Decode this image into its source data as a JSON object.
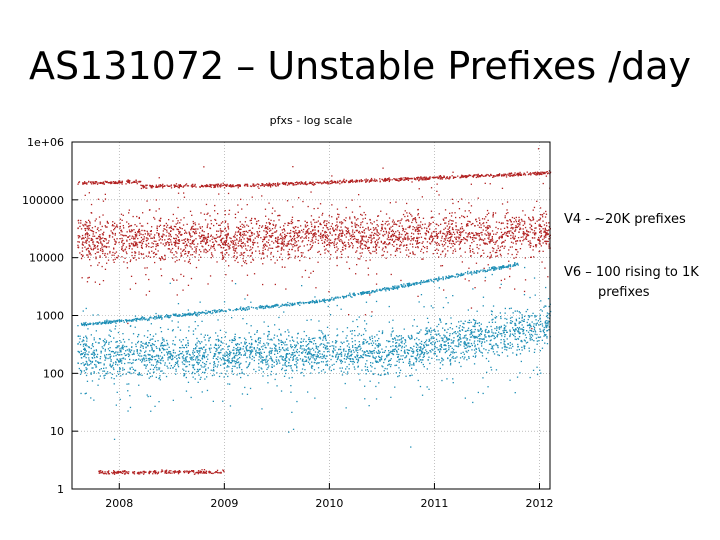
{
  "slide": {
    "title": "AS131072 – Unstable Prefixes /day"
  },
  "annotations": {
    "v4": "V4 - ~20K prefixes",
    "v6_line1": "V6 – 100 rising to 1K",
    "v6_line2": "prefixes"
  },
  "chart_data": {
    "type": "scatter",
    "title": "pfxs - log scale",
    "xlabel": "",
    "ylabel": "",
    "y_scale": "log",
    "ylim": [
      1,
      1000000
    ],
    "xlim": [
      2007.55,
      2012.1
    ],
    "y_ticks": [
      {
        "value": 1,
        "label": "1"
      },
      {
        "value": 10,
        "label": "10"
      },
      {
        "value": 100,
        "label": "100"
      },
      {
        "value": 1000,
        "label": "1000"
      },
      {
        "value": 10000,
        "label": "10000"
      },
      {
        "value": 100000,
        "label": "100000"
      },
      {
        "value": 1000000,
        "label": "1e+06"
      }
    ],
    "x_ticks": [
      {
        "value": 2008,
        "label": "2008"
      },
      {
        "value": 2009,
        "label": "2009"
      },
      {
        "value": 2010,
        "label": "2010"
      },
      {
        "value": 2011,
        "label": "2011"
      },
      {
        "value": 2012,
        "label": "2012"
      }
    ],
    "grid": true,
    "legend": "none",
    "series": [
      {
        "color": "#b22222",
        "bands": [
          {
            "kind": "line",
            "x": [
              2007.6,
              2008.2
            ],
            "y": [
              200000,
              210000
            ]
          },
          {
            "kind": "line",
            "x": [
              2008.2,
              2009.5
            ],
            "y": [
              175000,
              185000
            ]
          },
          {
            "kind": "line",
            "x": [
              2009.5,
              2012.1
            ],
            "y": [
              190000,
              300000
            ]
          },
          {
            "kind": "cloud",
            "x": [
              2007.6,
              2012.1
            ],
            "y_center": [
              20000,
              28000
            ]
          },
          {
            "kind": "line",
            "x": [
              2007.8,
              2009.0
            ],
            "y": [
              2,
              2
            ]
          }
        ]
      },
      {
        "color": "#1f8fb6",
        "bands": [
          {
            "kind": "line",
            "x": [
              2007.6,
              2009.9
            ],
            "y": [
              700,
              1800
            ]
          },
          {
            "kind": "line",
            "x": [
              2009.9,
              2011.8
            ],
            "y": [
              1800,
              8000
            ]
          },
          {
            "kind": "cloud",
            "x": [
              2007.6,
              2010.9
            ],
            "y_center": [
              200,
              250
            ]
          },
          {
            "kind": "cloud",
            "x": [
              2010.9,
              2012.1
            ],
            "y_center": [
              300,
              700
            ]
          }
        ]
      }
    ]
  }
}
